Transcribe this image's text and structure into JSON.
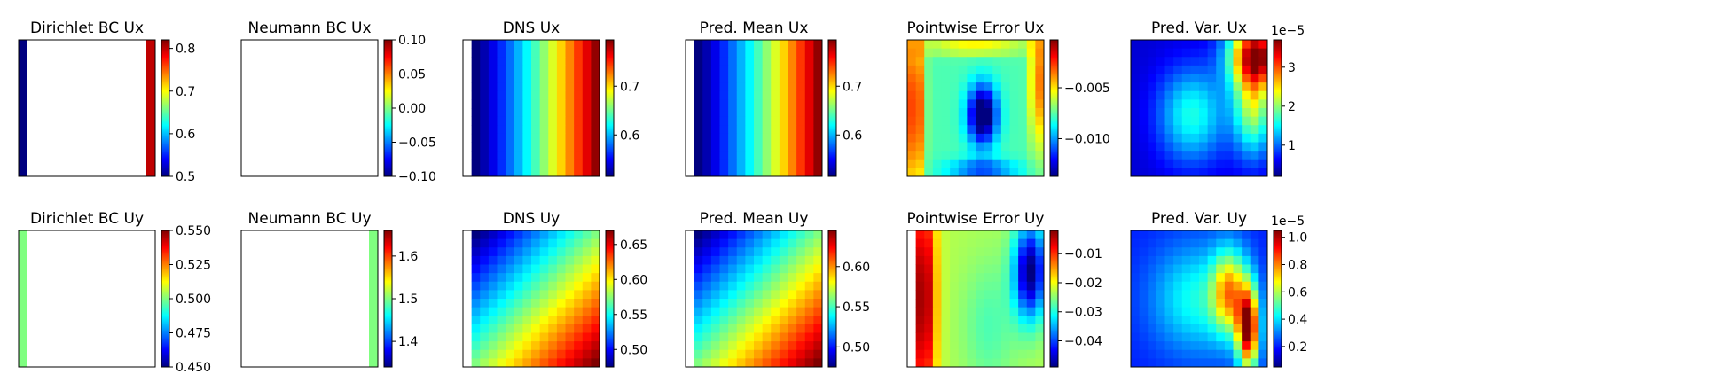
{
  "chart_data": [
    {
      "type": "heatmap",
      "title": "Dirichlet BC Ux",
      "pattern": "bc-left-right",
      "colorbar": {
        "min": 0.5,
        "max": 0.82,
        "ticks": [
          0.5,
          0.6,
          0.7,
          0.8
        ],
        "tick_labels": [
          "0.5",
          "0.6",
          "0.7",
          "0.8"
        ],
        "offset": ""
      },
      "values": {
        "left_edge": 0.5,
        "right_edge": 0.8
      }
    },
    {
      "type": "heatmap",
      "title": "Neumann BC Ux",
      "pattern": "empty",
      "colorbar": {
        "min": -0.1,
        "max": 0.1,
        "ticks": [
          -0.1,
          -0.05,
          0.0,
          0.05,
          0.1
        ],
        "tick_labels": [
          "−0.10",
          "−0.05",
          "0.00",
          "0.05",
          "0.10"
        ],
        "offset": ""
      },
      "values": {}
    },
    {
      "type": "heatmap",
      "title": "DNS Ux",
      "pattern": "columns",
      "colorbar": {
        "min": 0.515,
        "max": 0.795,
        "ticks": [
          0.6,
          0.7
        ],
        "tick_labels": [
          "0.6",
          "0.7"
        ],
        "offset": ""
      },
      "values": {
        "left": 0.515,
        "right": 0.79,
        "gamma": 1.15
      }
    },
    {
      "type": "heatmap",
      "title": "Pred. Mean Ux",
      "pattern": "columns",
      "colorbar": {
        "min": 0.515,
        "max": 0.795,
        "ticks": [
          0.6,
          0.7
        ],
        "tick_labels": [
          "0.6",
          "0.7"
        ],
        "offset": ""
      },
      "values": {
        "left": 0.515,
        "right": 0.79,
        "gamma": 1.15
      }
    },
    {
      "type": "heatmap",
      "title": "Pointwise Error Ux",
      "pattern": "error-ux",
      "colorbar": {
        "min": -0.0137,
        "max": -0.0003,
        "ticks": [
          -0.01,
          -0.005
        ],
        "tick_labels": [
          "−0.010",
          "−0.005"
        ],
        "offset": ""
      },
      "values": {
        "min": -0.0137,
        "max": -0.0003
      }
    },
    {
      "type": "heatmap",
      "title": "Pred. Var. Ux",
      "pattern": "var-ux",
      "colorbar": {
        "min": 0.2,
        "max": 3.7,
        "ticks": [
          1,
          2,
          3
        ],
        "tick_labels": [
          "1",
          "2",
          "3"
        ],
        "offset": "1e−5"
      },
      "values": {
        "min": 0.2,
        "max": 3.7
      }
    },
    {
      "type": "heatmap",
      "title": "Dirichlet BC Uy",
      "pattern": "bc-left",
      "colorbar": {
        "min": 0.45,
        "max": 0.55,
        "ticks": [
          0.45,
          0.475,
          0.5,
          0.525,
          0.55
        ],
        "tick_labels": [
          "0.450",
          "0.475",
          "0.500",
          "0.525",
          "0.550"
        ],
        "offset": ""
      },
      "values": {
        "left_edge": 0.5
      }
    },
    {
      "type": "heatmap",
      "title": "Neumann BC Uy",
      "pattern": "bc-right",
      "colorbar": {
        "min": 1.34,
        "max": 1.66,
        "ticks": [
          1.4,
          1.5,
          1.6
        ],
        "tick_labels": [
          "1.4",
          "1.5",
          "1.6"
        ],
        "offset": ""
      },
      "values": {
        "right_edge": 1.5
      }
    },
    {
      "type": "heatmap",
      "title": "DNS Uy",
      "pattern": "diagonal",
      "colorbar": {
        "min": 0.475,
        "max": 0.67,
        "ticks": [
          0.5,
          0.55,
          0.6,
          0.65
        ],
        "tick_labels": [
          "0.50",
          "0.55",
          "0.60",
          "0.65"
        ],
        "offset": ""
      },
      "values": {
        "top_left": 0.475,
        "bottom_right": 0.67
      }
    },
    {
      "type": "heatmap",
      "title": "Pred. Mean Uy",
      "pattern": "diagonal",
      "colorbar": {
        "min": 0.475,
        "max": 0.645,
        "ticks": [
          0.5,
          0.55,
          0.6
        ],
        "tick_labels": [
          "0.50",
          "0.55",
          "0.60"
        ],
        "offset": ""
      },
      "values": {
        "top_left": 0.475,
        "bottom_right": 0.645
      }
    },
    {
      "type": "heatmap",
      "title": "Pointwise Error Uy",
      "pattern": "error-uy",
      "colorbar": {
        "min": -0.049,
        "max": -0.002,
        "ticks": [
          -0.04,
          -0.03,
          -0.02,
          -0.01
        ],
        "tick_labels": [
          "−0.04",
          "−0.03",
          "−0.02",
          "−0.01"
        ],
        "offset": ""
      },
      "values": {
        "min": -0.049,
        "max": -0.002
      }
    },
    {
      "type": "heatmap",
      "title": "Pred. Var. Uy",
      "pattern": "var-uy",
      "colorbar": {
        "min": 0.05,
        "max": 1.05,
        "ticks": [
          0.2,
          0.4,
          0.6,
          0.8,
          1.0
        ],
        "tick_labels": [
          "0.2",
          "0.4",
          "0.6",
          "0.8",
          "1.0"
        ],
        "offset": "1e−5"
      },
      "values": {
        "min": 0.05,
        "max": 1.05
      }
    }
  ]
}
